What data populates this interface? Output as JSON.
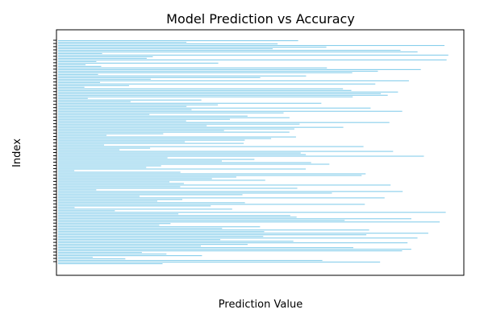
{
  "chart_data": {
    "type": "bar",
    "orientation": "horizontal",
    "title": "Model Prediction vs Accuracy",
    "xlabel": "Prediction Value",
    "ylabel": "Index",
    "bar_color": "#87ceeb",
    "grid": false,
    "legend": "none",
    "categories": [],
    "values": []
  }
}
